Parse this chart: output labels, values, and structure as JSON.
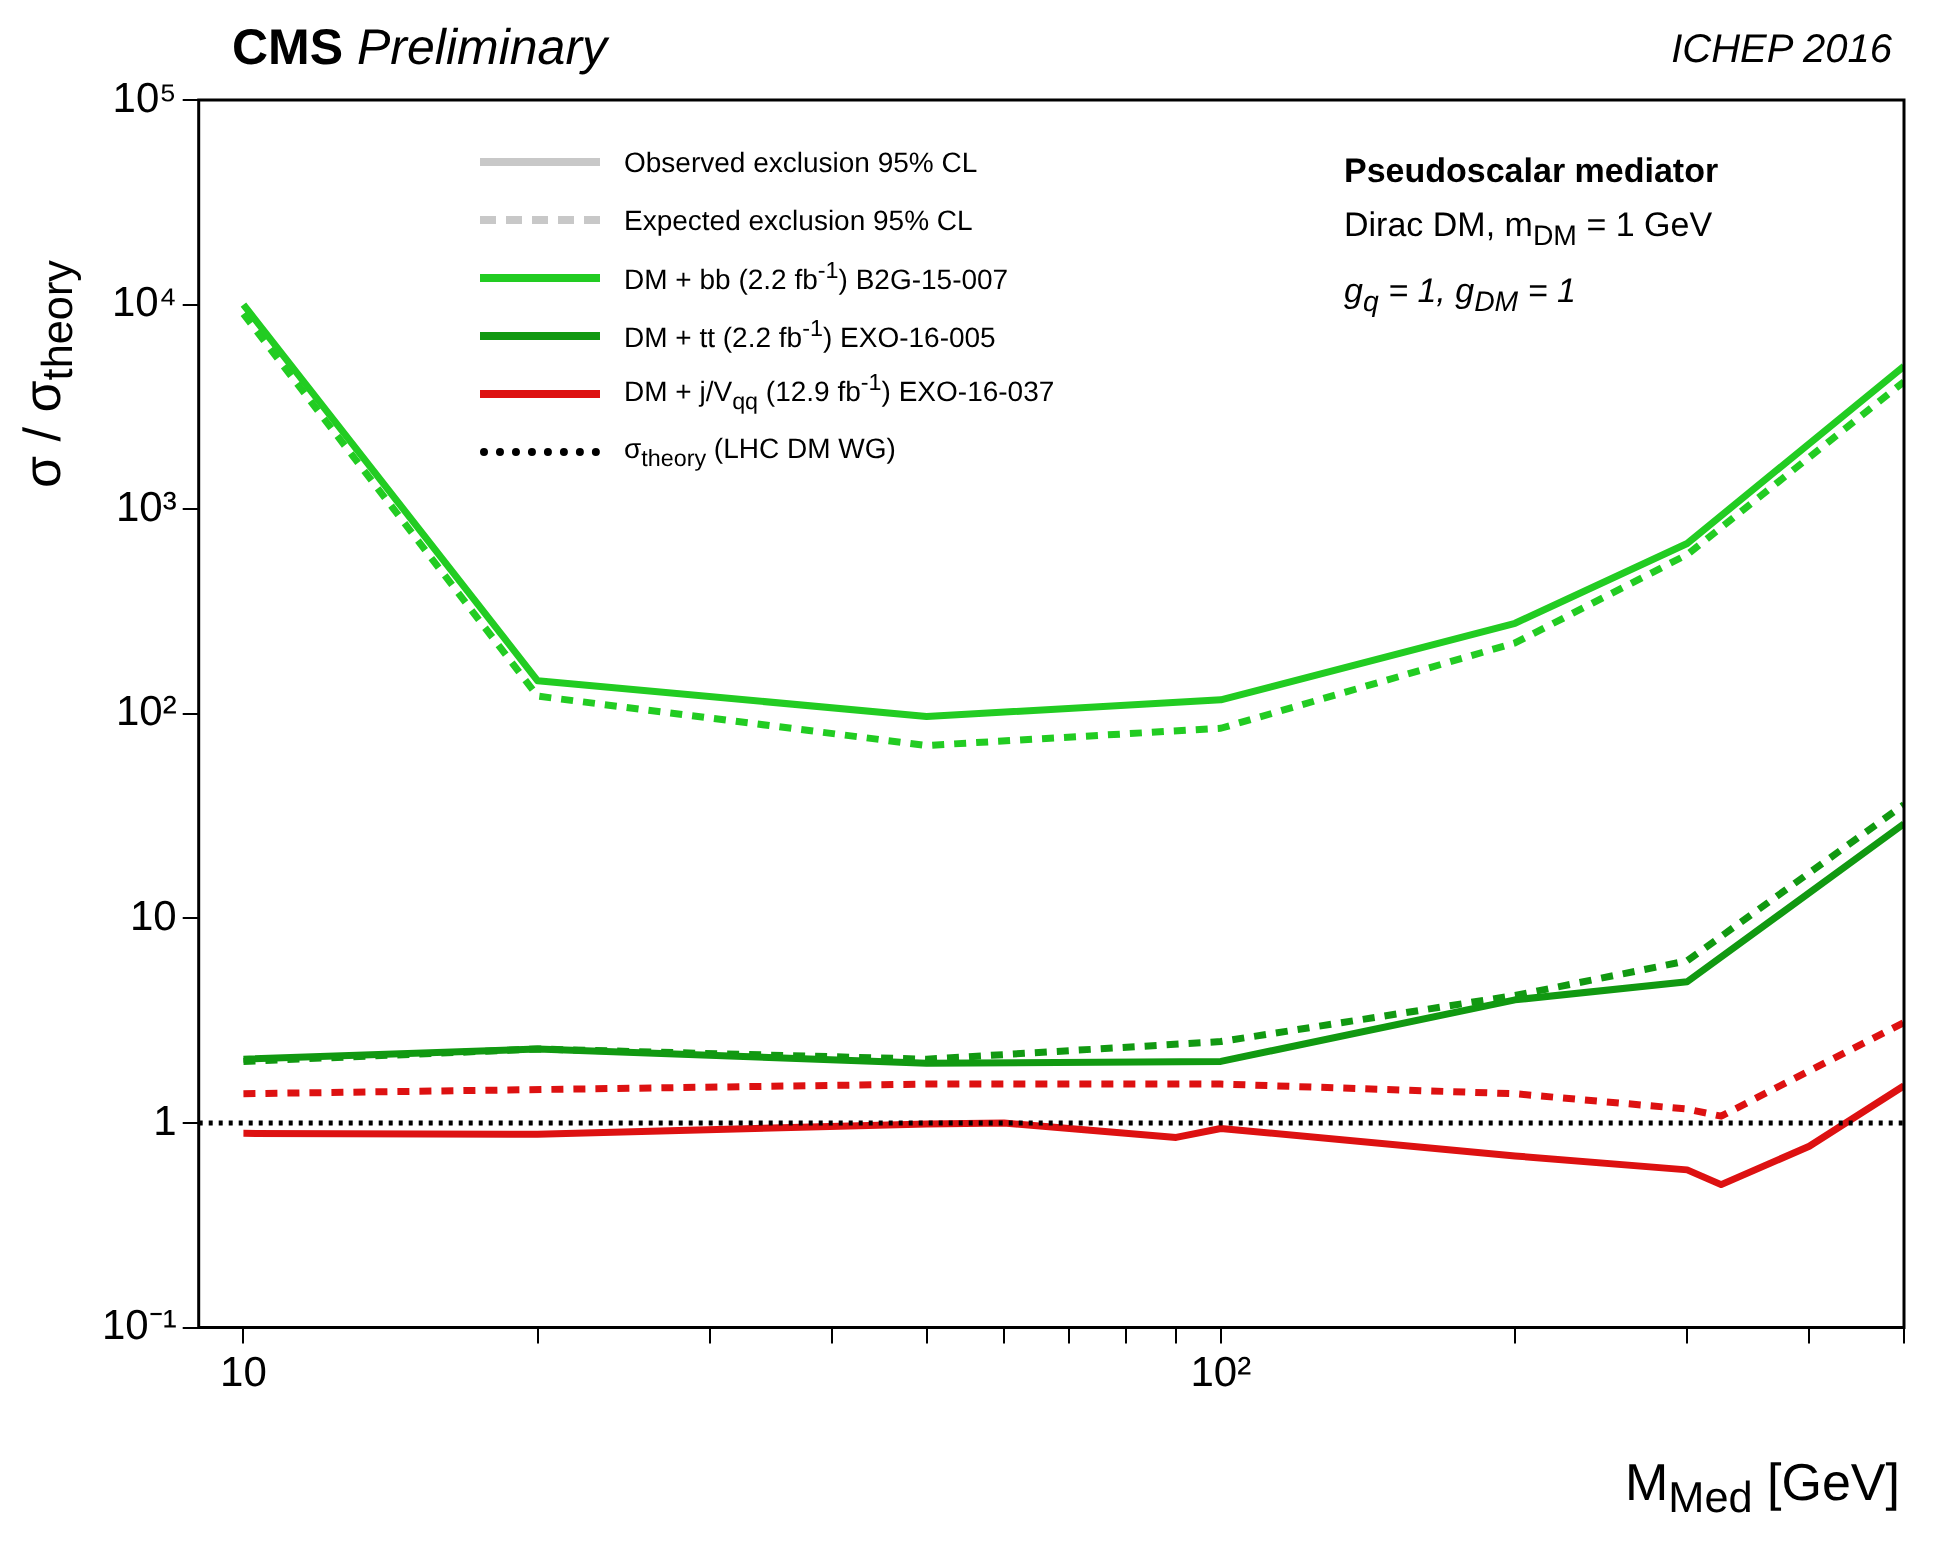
{
  "chart_data": {
    "type": "line",
    "title": "CMS Preliminary",
    "subtitle": "ICHEP 2016",
    "xlabel": "M$_{Med}$ [GeV]",
    "ylabel": "σ / σ$_{theory}$",
    "annotations": [
      "Observed exclusion 95% CL",
      "Expected exclusion 95% CL",
      "Pseudoscalar mediator",
      "Dirac DM, m$_{DM}$ = 1 GeV",
      "g$_{q}$ = 1, g$_{DM}$ = 1"
    ],
    "log": "xy",
    "marker": "none",
    "legend": "top",
    "grid": false,
    "xlim": [
      9,
      500
    ],
    "ylim": [
      0.1,
      100000
    ],
    "xticks": [
      {
        "value": 10,
        "label": "10"
      },
      {
        "value": 20,
        "label": null
      },
      {
        "value": 30,
        "label": null
      },
      {
        "value": 40,
        "label": null
      },
      {
        "value": 50,
        "label": null
      },
      {
        "value": 60,
        "label": null
      },
      {
        "value": 70,
        "label": null
      },
      {
        "value": 80,
        "label": null
      },
      {
        "value": 90,
        "label": null
      },
      {
        "value": 100,
        "label": "10²"
      },
      {
        "value": 200,
        "label": null
      },
      {
        "value": 300,
        "label": null
      },
      {
        "value": 400,
        "label": null
      },
      {
        "value": 500,
        "label": null
      }
    ],
    "yticks": [
      {
        "value": 0.1,
        "label": "10⁻¹"
      },
      1,
      10,
      {
        "value": 100,
        "label": "10²"
      },
      {
        "value": 1000,
        "label": "10³"
      },
      {
        "value": 10000,
        "label": "10⁴"
      },
      {
        "value": 100000,
        "label": "10⁵"
      }
    ],
    "ref_lines": [
      {
        "axis": "y",
        "value": 1,
        "label": "σ$_{theory}$ (LHC DM WG)",
        "color": "#000000",
        "line_style": "dotted"
      }
    ],
    "series": [
      {
        "name": "DM + bb (2.2 fb$^{-1}$) B2G-15-007",
        "color": "#22cc22",
        "line_style": "solid",
        "x": [
          10,
          20,
          50,
          100,
          200,
          300,
          500
        ],
        "values": [
          10000,
          145,
          97,
          117,
          277,
          680,
          5000
        ]
      },
      {
        "color": "#22cc22",
        "line_style": "dashed",
        "x": [
          10,
          20,
          50,
          100,
          200,
          300,
          500
        ],
        "values": [
          9000,
          122,
          70,
          85,
          222,
          600,
          4200
        ]
      },
      {
        "name": "DM + tt (2.2 fb$^{-1}$) EXO-16-005",
        "color": "#119911",
        "line_style": "solid",
        "x": [
          10,
          20,
          50,
          100,
          200,
          300,
          500
        ],
        "values": [
          2.05,
          2.3,
          1.96,
          2.0,
          4.0,
          4.9,
          29
        ]
      },
      {
        "color": "#119911",
        "line_style": "dashed",
        "x": [
          10,
          20,
          50,
          100,
          200,
          300,
          500
        ],
        "values": [
          2.0,
          2.3,
          2.05,
          2.5,
          4.2,
          6.2,
          36
        ]
      },
      {
        "name": "DM + j/V$_{qq}$ (12.9 fb$^{-1}$) EXO-16-037",
        "color": "#dd1111",
        "line_style": "solid",
        "x": [
          10,
          20,
          50,
          60,
          90,
          100,
          200,
          300,
          325,
          400,
          500
        ],
        "values": [
          0.89,
          0.88,
          0.99,
          1.0,
          0.85,
          0.94,
          0.69,
          0.59,
          0.5,
          0.77,
          1.52
        ]
      },
      {
        "color": "#dd1111",
        "line_style": "dashed",
        "x": [
          10,
          50,
          100,
          200,
          300,
          325,
          400,
          500
        ],
        "values": [
          1.39,
          1.55,
          1.55,
          1.39,
          1.17,
          1.08,
          1.8,
          3.1
        ]
      }
    ]
  }
}
